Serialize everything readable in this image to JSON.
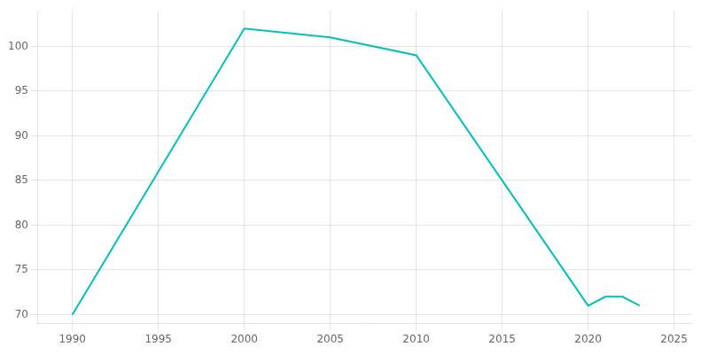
{
  "chart_data": {
    "type": "line",
    "x": [
      1990,
      2000,
      2005,
      2010,
      2020,
      2021,
      2022,
      2023
    ],
    "values": [
      70,
      102,
      101,
      99,
      71,
      72,
      72,
      71
    ],
    "color": "#00BFBF",
    "xlim": [
      1988,
      2026
    ],
    "ylim": [
      69,
      104
    ],
    "xticks": [
      1990,
      1995,
      2000,
      2005,
      2010,
      2015,
      2020,
      2025
    ],
    "yticks": [
      70,
      75,
      80,
      85,
      90,
      95,
      100
    ],
    "grid": true
  }
}
